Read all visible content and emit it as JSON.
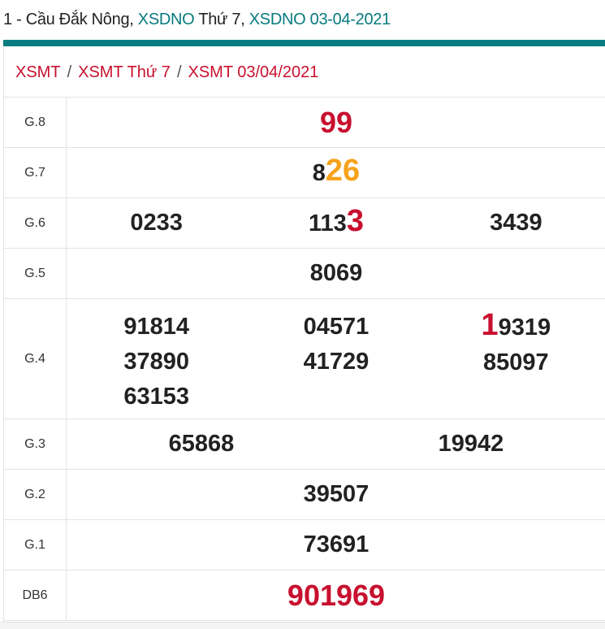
{
  "header": {
    "prefix": "1 - Cầu Đắk Nông, ",
    "link1": "XSDNO",
    "mid": " Thứ 7, ",
    "link2": "XSDNO 03-04-2021"
  },
  "breadcrumb": [
    "XSMT",
    "XSMT Thứ 7",
    "XSMT 03/04/2021"
  ],
  "breadcrumb_separator": "/",
  "colors": {
    "accent": "#087e82",
    "red": "#c8102e",
    "orange": "#f7a21b",
    "link": "#087a7f"
  },
  "prizes": [
    {
      "label": "G.8",
      "big": true,
      "cols": [
        [
          [
            {
              "t": "99",
              "c": "red"
            }
          ]
        ]
      ]
    },
    {
      "label": "G.7",
      "cols": [
        [
          [
            {
              "t": "8"
            },
            {
              "t": "26",
              "c": "orange",
              "hl": true
            }
          ]
        ]
      ]
    },
    {
      "label": "G.6",
      "cols": [
        [
          [
            {
              "t": "0233"
            }
          ]
        ],
        [
          [
            {
              "t": "113"
            },
            {
              "t": "3",
              "c": "red",
              "hl": true
            }
          ]
        ],
        [
          [
            {
              "t": "3439"
            }
          ]
        ]
      ]
    },
    {
      "label": "G.5",
      "cols": [
        [
          [
            {
              "t": "8069"
            }
          ]
        ]
      ]
    },
    {
      "label": "G.4",
      "cols": [
        [
          [
            {
              "t": "91814"
            }
          ],
          [
            {
              "t": "37890"
            }
          ],
          [
            {
              "t": "63153"
            }
          ]
        ],
        [
          [
            {
              "t": "04571"
            }
          ],
          [
            {
              "t": "41729"
            }
          ]
        ],
        [
          [
            {
              "t": "1",
              "c": "red",
              "hl": true
            },
            {
              "t": "9319"
            }
          ],
          [
            {
              "t": "85097"
            }
          ]
        ]
      ]
    },
    {
      "label": "G.3",
      "cols": [
        [
          [
            {
              "t": "65868"
            }
          ]
        ],
        [
          [
            {
              "t": "19942"
            }
          ]
        ]
      ]
    },
    {
      "label": "G.2",
      "cols": [
        [
          [
            {
              "t": "39507"
            }
          ]
        ]
      ]
    },
    {
      "label": "G.1",
      "cols": [
        [
          [
            {
              "t": "73691"
            }
          ]
        ]
      ]
    },
    {
      "label": "DB6",
      "big": true,
      "cols": [
        [
          [
            {
              "t": "901969",
              "c": "red"
            }
          ]
        ]
      ]
    }
  ]
}
